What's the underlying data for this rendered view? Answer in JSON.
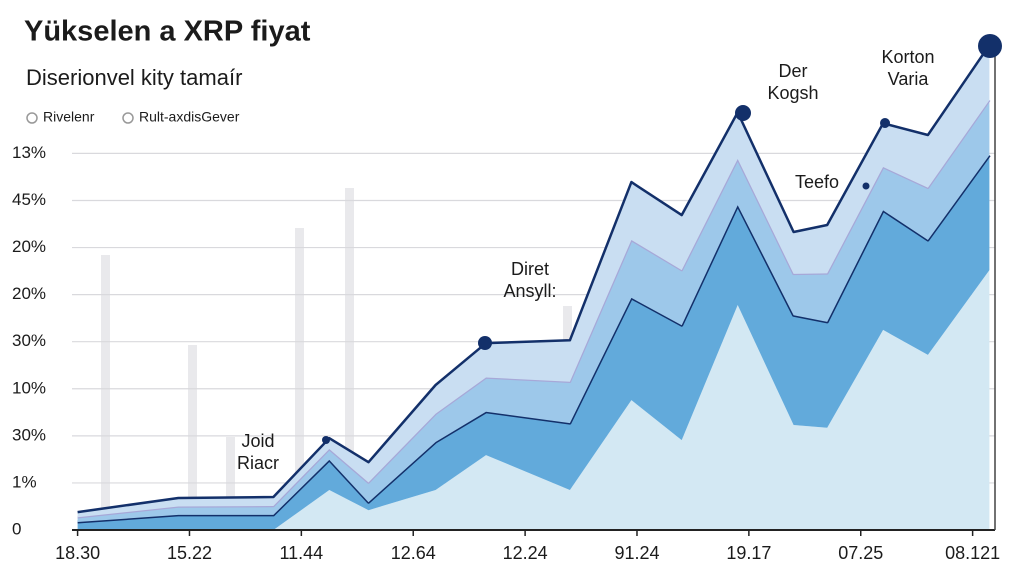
{
  "chart_data": {
    "type": "stacked-area",
    "title": "Yükselen a XRP fiyat",
    "subtitle": "Diserionvel kity tamaír",
    "legend": [
      "Rivelenr",
      "Rult-axdisGever"
    ],
    "x": [
      0,
      0.9,
      1.75,
      2.25,
      2.6,
      3.2,
      3.65,
      4.4,
      4.95,
      5.4,
      5.9,
      6.4,
      6.7,
      7.2,
      7.6,
      8.15
    ],
    "xlim": [
      -0.05,
      8.2
    ],
    "xticks": [
      {
        "value": 0,
        "label": "18.30"
      },
      {
        "value": 1,
        "label": "15.22"
      },
      {
        "value": 2,
        "label": "11.44"
      },
      {
        "value": 3,
        "label": "12.64"
      },
      {
        "value": 4,
        "label": "12.24"
      },
      {
        "value": 5,
        "label": "91.24"
      },
      {
        "value": 6,
        "label": "19.17"
      },
      {
        "value": 7,
        "label": "07.25"
      },
      {
        "value": 8,
        "label": "08.121"
      }
    ],
    "ylim": [
      0,
      10.6
    ],
    "yticks": [
      0,
      {
        "value": 1,
        "label": "1%"
      },
      {
        "value": 2,
        "label": "30%"
      },
      {
        "value": 3,
        "label": "10%"
      },
      {
        "value": 4,
        "label": "30%"
      },
      {
        "value": 5,
        "label": "20%"
      },
      {
        "value": 6,
        "label": "20%"
      },
      {
        "value": 7,
        "label": "45%"
      },
      {
        "value": 8,
        "label": "13%"
      }
    ],
    "grid": true,
    "series": [
      {
        "color": "#d3e8f3",
        "values": [
          0,
          0,
          0,
          0.85,
          0.42,
          0.85,
          1.59,
          0.85,
          2.76,
          1.91,
          4.78,
          2.23,
          2.17,
          4.25,
          3.72,
          5.52
        ]
      },
      {
        "color": "#62aadb",
        "values": [
          0.17,
          0.32,
          0.32,
          0.64,
          0.17,
          1.02,
          0.92,
          1.42,
          2.17,
          2.44,
          2.12,
          2.33,
          2.25,
          2.54,
          2.44,
          2.44
        ]
      },
      {
        "color": "#9dc8ea",
        "values": [
          0.1,
          0.18,
          0.19,
          0.23,
          0.42,
          0.6,
          0.73,
          0.88,
          1.23,
          1.17,
          0.98,
          0.88,
          1.03,
          0.92,
          1.11,
          1.17
        ]
      },
      {
        "color": "#c9def2",
        "values": [
          0.11,
          0.18,
          0.19,
          0.23,
          0.43,
          0.61,
          0.73,
          0.88,
          1.23,
          1.17,
          0.99,
          0.89,
          1.03,
          0.93,
          1.12,
          1.17
        ]
      }
    ],
    "annotations": [
      {
        "text": "Joid Riacr"
      },
      {
        "text": "Diret Ansyll:"
      },
      {
        "text": "Der Kogsh"
      },
      {
        "text": "Teefo"
      },
      {
        "text": "Korton Varia"
      }
    ]
  }
}
